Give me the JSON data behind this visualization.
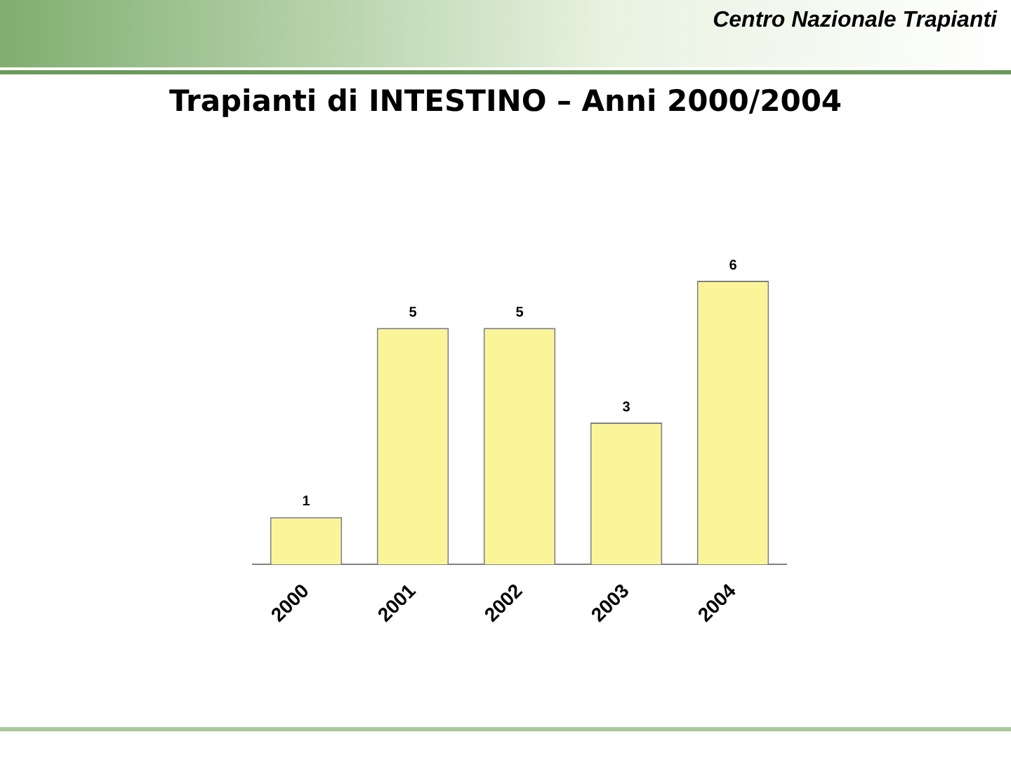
{
  "chart_data": {
    "type": "bar",
    "title": "Trapianti di INTESTINO – Anni 2000/2004",
    "annotations": [
      "Centro Nazionale Trapianti"
    ],
    "categories": [
      "2000",
      "2001",
      "2002",
      "2003",
      "2004"
    ],
    "values": [
      1,
      5,
      5,
      3,
      6
    ],
    "color": "#fbf59a",
    "data_labels": true,
    "grid": false,
    "legend": false
  }
}
